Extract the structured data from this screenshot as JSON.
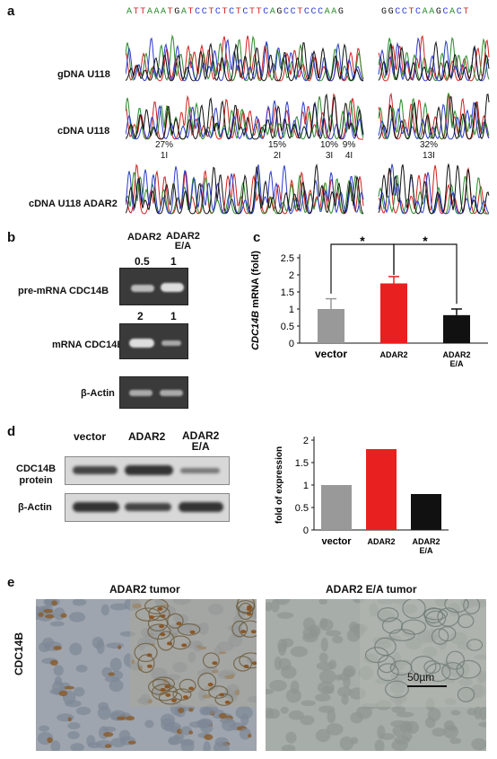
{
  "panels": {
    "a": "a",
    "b": "b",
    "c": "c",
    "d": "d",
    "e": "e"
  },
  "panel_a": {
    "seq_left": "ATTAAATGATCCTCTCTCTTCAGCCTCCCAAG",
    "seq_right": "GGCCTCAAGCACT",
    "rows": [
      "gDNA U118",
      "cDNA U118",
      "cDNA U118 ADAR2"
    ],
    "sites": [
      {
        "pct": "27%",
        "id": "1I"
      },
      {
        "pct": "15%",
        "id": "2I"
      },
      {
        "pct": "10%",
        "id": "3I"
      },
      {
        "pct": "9%",
        "id": "4I"
      },
      {
        "pct": "32%",
        "id": "13I"
      }
    ],
    "colors": {
      "A": "#2a8a2a",
      "C": "#2a3acc",
      "G": "#111111",
      "T": "#d22020"
    }
  },
  "panel_b": {
    "col1": "ADAR2",
    "col2": "ADAR2",
    "col2_sub": "E/A",
    "row1": "pre-mRNA CDC14B",
    "row2": "mRNA CDC14B",
    "row3": "β-Actin",
    "row1_quant": [
      "0.5",
      "1"
    ],
    "row2_quant": [
      "2",
      "1"
    ]
  },
  "chart_data": [
    {
      "type": "bar",
      "panel": "c",
      "categories": [
        "vector",
        "ADAR2",
        "ADAR2 E/A"
      ],
      "values": [
        1.0,
        1.75,
        0.82
      ],
      "errors": [
        0.3,
        0.2,
        0.18
      ],
      "colors": [
        "#999999",
        "#e82020",
        "#111111"
      ],
      "ylabel": "CDC14B mRNA (fold)",
      "ylabel_italic": "CDC14B",
      "ylabel_rest": " mRNA (fold)",
      "ylim": [
        0,
        2.5
      ],
      "yticks": [
        "0",
        "0.5",
        "1",
        "1.5",
        "2",
        "2.5"
      ],
      "xlabels": [
        "vector",
        "ADAR2",
        "ADAR2",
        "E/A"
      ],
      "significance": [
        "*",
        "*"
      ]
    },
    {
      "type": "bar",
      "panel": "d",
      "categories": [
        "vector",
        "ADAR2",
        "ADAR2 E/A"
      ],
      "values": [
        1.0,
        1.8,
        0.8
      ],
      "colors": [
        "#999999",
        "#e82020",
        "#111111"
      ],
      "ylabel": "fold of expression",
      "ylim": [
        0,
        2
      ],
      "yticks": [
        "0",
        "0.5",
        "1",
        "1.5",
        "2"
      ],
      "xlabels": [
        "vector",
        "ADAR2",
        "ADAR2",
        "E/A"
      ]
    }
  ],
  "panel_d": {
    "col1": "vector",
    "col2": "ADAR2",
    "col3": "ADAR2",
    "col3_sub": "E/A",
    "row1": "CDC14B",
    "row1_sub": "protein",
    "row2": "β-Actin"
  },
  "panel_e": {
    "left_title": "ADAR2 tumor",
    "right_title": "ADAR2 E/A tumor",
    "side_label": "CDC14B",
    "scale_bar": "50µm"
  }
}
